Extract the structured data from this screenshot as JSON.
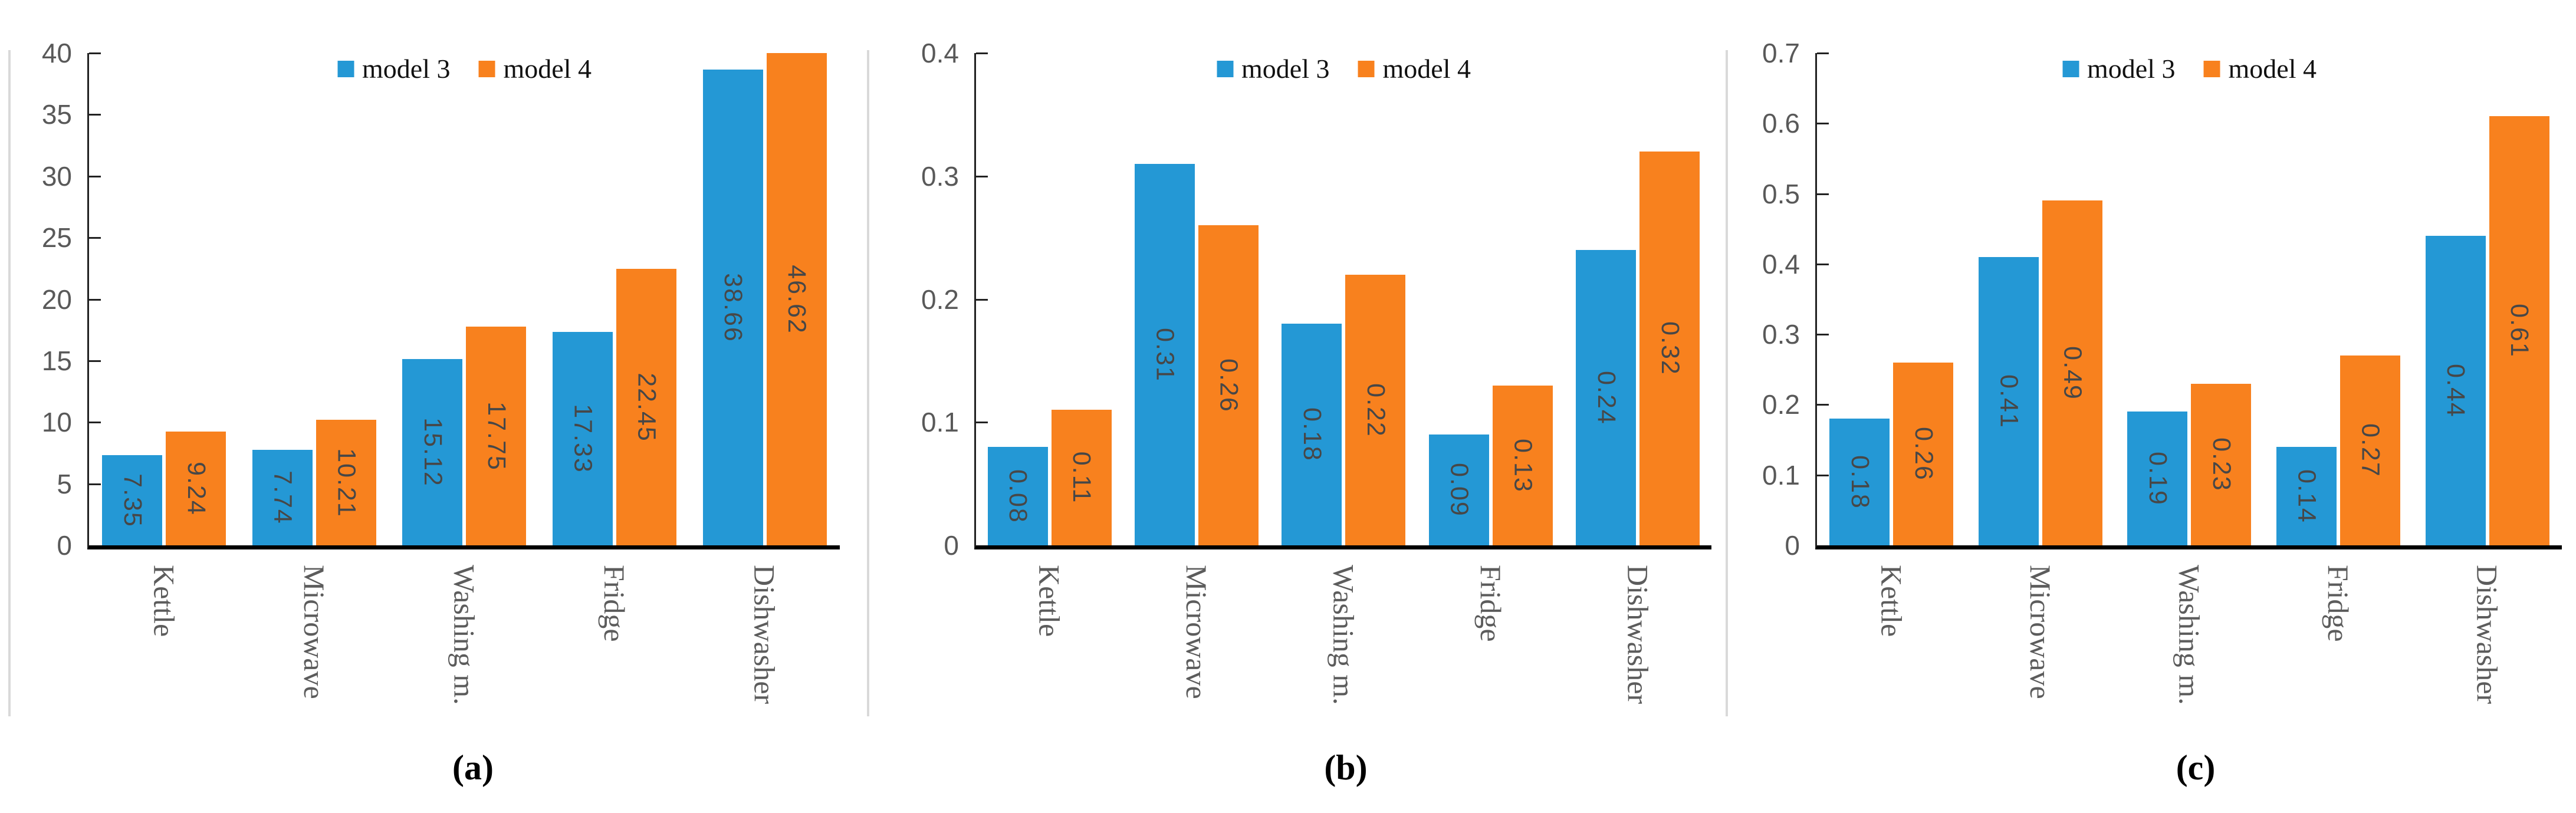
{
  "figure": {
    "background": "#ffffff",
    "colors": {
      "model3_blue": "#2498D5",
      "model4_orange": "#F8811E",
      "axis_text": "#595959",
      "category_text": "#5c5c5c",
      "value_text": "#474747",
      "axis_line": "#222222",
      "baseline": "#000000",
      "panel_edge": "#d9d9d9",
      "legend_text": "#111111"
    }
  },
  "legend": {
    "items": [
      {
        "label": "model 3",
        "color_key": "model3_blue"
      },
      {
        "label": "model 4",
        "color_key": "model4_orange"
      }
    ]
  },
  "chart_data": [
    {
      "type": "bar",
      "caption": "(a)",
      "categories": [
        "Kettle",
        "Microwave",
        "Washing m.",
        "Fridge",
        "Dishwasher"
      ],
      "series": [
        {
          "name": "model 3",
          "values": [
            7.35,
            7.74,
            15.12,
            17.33,
            38.66
          ],
          "labels": [
            "7.35",
            "7.74",
            "15.12",
            "17.33",
            "38.66"
          ]
        },
        {
          "name": "model 4",
          "values": [
            9.24,
            10.21,
            17.75,
            22.45,
            46.62
          ],
          "labels": [
            "9.24",
            "10.21",
            "17.75",
            "22.45",
            "46.62"
          ]
        }
      ],
      "ylim": [
        0,
        40
      ],
      "yticks": [
        "0",
        "5",
        "10",
        "15",
        "20",
        "25",
        "30",
        "35",
        "40"
      ],
      "grid": false,
      "legend_position": "top-center",
      "value_labels": "inside-center-rotated",
      "clip_to_ylim": true
    },
    {
      "type": "bar",
      "caption": "(b)",
      "categories": [
        "Kettle",
        "Microwave",
        "Washing m.",
        "Fridge",
        "Dishwasher"
      ],
      "series": [
        {
          "name": "model 3",
          "values": [
            0.08,
            0.31,
            0.18,
            0.09,
            0.24
          ],
          "labels": [
            "0.08",
            "0.31",
            "0.18",
            "0.09",
            "0.24"
          ]
        },
        {
          "name": "model 4",
          "values": [
            0.11,
            0.26,
            0.22,
            0.13,
            0.32
          ],
          "labels": [
            "0.11",
            "0.26",
            "0.22",
            "0.13",
            "0.32"
          ]
        }
      ],
      "ylim": [
        0,
        0.4
      ],
      "yticks": [
        "0",
        "0.1",
        "0.2",
        "0.3",
        "0.4"
      ],
      "grid": false,
      "legend_position": "top-center",
      "value_labels": "inside-center-rotated",
      "clip_to_ylim": true
    },
    {
      "type": "bar",
      "caption": "(c)",
      "categories": [
        "Kettle",
        "Microwave",
        "Washing m.",
        "Fridge",
        "Dishwasher"
      ],
      "series": [
        {
          "name": "model 3",
          "values": [
            0.18,
            0.41,
            0.19,
            0.14,
            0.44
          ],
          "labels": [
            "0.18",
            "0.41",
            "0.19",
            "0.14",
            "0.44"
          ]
        },
        {
          "name": "model 4",
          "values": [
            0.26,
            0.49,
            0.23,
            0.27,
            0.61
          ],
          "labels": [
            "0.26",
            "0.49",
            "0.23",
            "0.27",
            "0.61"
          ]
        }
      ],
      "ylim": [
        0,
        0.7
      ],
      "yticks": [
        "0",
        "0.1",
        "0.2",
        "0.3",
        "0.4",
        "0.5",
        "0.6",
        "0.7"
      ],
      "grid": false,
      "legend_position": "top-center",
      "value_labels": "inside-center-rotated",
      "clip_to_ylim": true
    }
  ]
}
